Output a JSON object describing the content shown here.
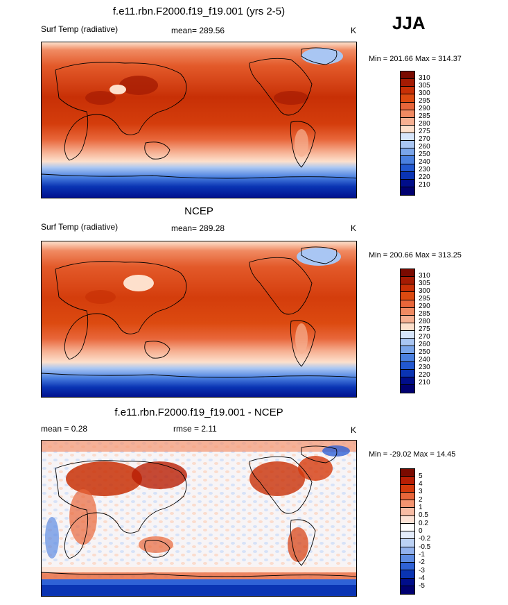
{
  "season": "JJA",
  "panels": [
    {
      "title": "f.e11.rbn.F2000.f19_f19.001 (yrs 2-5)",
      "left_label": "Surf Temp (radiative)",
      "center_label": "mean= 289.56",
      "units": "K",
      "minmax": "Min = 201.66 Max = 314.37",
      "levels": [
        "310",
        "305",
        "300",
        "295",
        "290",
        "285",
        "280",
        "275",
        "270",
        "260",
        "250",
        "240",
        "230",
        "220",
        "210"
      ],
      "map_fill": "warm"
    },
    {
      "title": "NCEP",
      "left_label": "Surf Temp (radiative)",
      "center_label": "mean= 289.28",
      "units": "K",
      "minmax": "Min = 200.66 Max = 313.25",
      "levels": [
        "310",
        "305",
        "300",
        "295",
        "290",
        "285",
        "280",
        "275",
        "270",
        "260",
        "250",
        "240",
        "230",
        "220",
        "210"
      ],
      "map_fill": "warm"
    },
    {
      "title": "f.e11.rbn.F2000.f19_f19.001 - NCEP",
      "left_label": "mean =   0.28",
      "center_label": "rmse =   2.11",
      "units": "K",
      "minmax": "Min = -29.02 Max =  14.45",
      "levels": [
        "5",
        "4",
        "3",
        "2",
        "1",
        "0.5",
        "0.2",
        "0",
        "-0.2",
        "-0.5",
        "-1",
        "-2",
        "-3",
        "-4",
        "-5"
      ],
      "map_fill": "diff"
    }
  ],
  "colors": {
    "abs_scale": [
      "#7a0a00",
      "#a51b03",
      "#c83006",
      "#dc4a10",
      "#e8663a",
      "#f08a62",
      "#f6b092",
      "#fde0cc",
      "#d7e6fb",
      "#a9c6f3",
      "#7aa5ea",
      "#4a80e0",
      "#2258d0",
      "#0a34b3",
      "#000d8a",
      "#000070"
    ],
    "diff_scale": [
      "#7a0a00",
      "#b81e04",
      "#d43a0c",
      "#e8663a",
      "#f39470",
      "#f8bca4",
      "#fde3d6",
      "#ffffff",
      "#e3ecfb",
      "#bcd2f5",
      "#92b2ee",
      "#5e8ce3",
      "#2f62d6",
      "#0a34b3",
      "#000d8a",
      "#000070"
    ]
  }
}
